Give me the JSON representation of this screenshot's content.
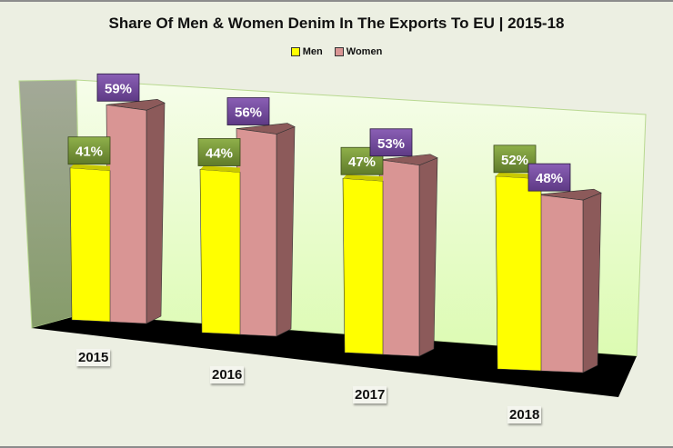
{
  "chart_data": {
    "type": "bar",
    "title": "Share Of Men & Women Denim In The Exports To EU | 2015-18",
    "categories": [
      "2015",
      "2016",
      "2017",
      "2018"
    ],
    "series": [
      {
        "name": "Men",
        "values": [
          41,
          44,
          47,
          52
        ],
        "labels": [
          "41%",
          "44%",
          "47%",
          "52%"
        ]
      },
      {
        "name": "Women",
        "values": [
          59,
          56,
          53,
          48
        ],
        "labels": [
          "59%",
          "56%",
          "53%",
          "48%"
        ]
      }
    ],
    "xlabel": "",
    "ylabel": "",
    "ylim": [
      0,
      60
    ],
    "unit": "%",
    "legend_position": "top",
    "grid": false,
    "three_d": true
  },
  "colors": {
    "men": "#ffff00",
    "women": "#d99594",
    "women_side": "#8c5a5a",
    "men_label_bg": "#77933c",
    "women_label_bg": "#7a4f9f",
    "back_wall": "#e8fbcf",
    "side_wall": "#8f9e80",
    "floor": "#000000"
  }
}
